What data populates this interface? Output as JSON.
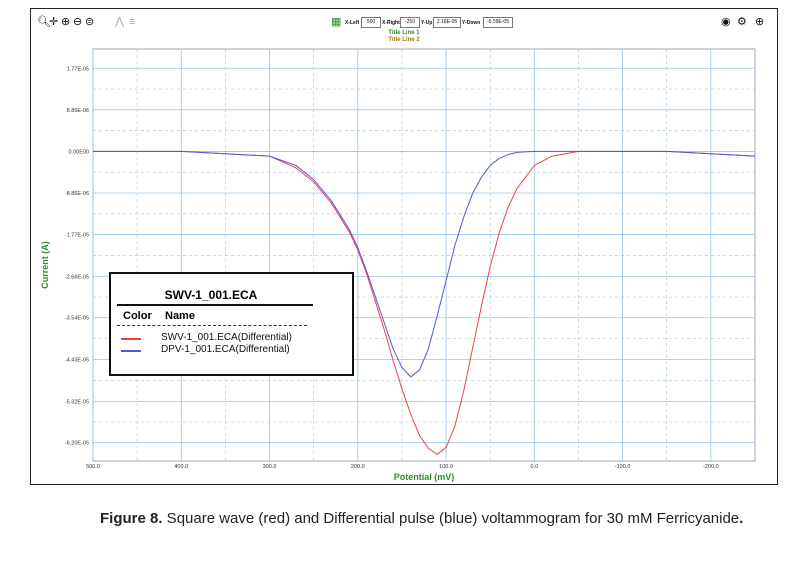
{
  "toolbar": {
    "icons_left": [
      "zoom-icon",
      "move-icon",
      "zoom-in-icon",
      "zoom-out-icon",
      "zoom-reset-icon",
      "peak-icon",
      "list-icon"
    ],
    "icons_right": [
      "camera-icon",
      "settings-icon",
      "zoom-icon"
    ],
    "x_left_label": "X-Left",
    "x_left_value": "500",
    "x_right_label": "X-Right",
    "x_right_value": "-250",
    "y_up_label": "Y-Up",
    "y_up_value": "2.18E-05",
    "y_down_label": "Y-Down",
    "y_down_value": "-6.59E-05"
  },
  "colors": {
    "grid": "#9cc3e6",
    "axis_label": "#2e8b2e",
    "red_series": "#ee4040",
    "blue_series": "#5555dd",
    "title_line_1": "#2e8b2e",
    "title_line_2": "#a07a10"
  },
  "chart_data": {
    "type": "line",
    "title_line_1": "Title Line 1",
    "title_line_2": "Title Line 2",
    "xlabel": "Potential (mV)",
    "ylabel": "Current (A)",
    "x_reversed": true,
    "xlim": [
      500,
      -250
    ],
    "ylim": [
      -6.59e-05,
      2.18e-05
    ],
    "grid": true,
    "x_ticks": [
      500,
      400,
      300,
      200,
      100,
      0,
      -100,
      -200
    ],
    "x_tick_labels": [
      "500.0",
      "400.0",
      "300.0",
      "200.0",
      "100.0",
      "0.0",
      "-100.0",
      "-200.0"
    ],
    "y_ticks": [
      1.77e-05,
      8.86e-06,
      0,
      -8.86e-06,
      -1.77e-05,
      -2.66e-05,
      -3.54e-05,
      -4.43e-05,
      -5.32e-05,
      -6.2e-05
    ],
    "y_tick_labels": [
      "1.77E-05",
      "8.86E-06",
      "0.00E00",
      "-8.86E-06",
      "-1.77E-05",
      "-2.66E-05",
      "-3.54E-05",
      "-4.43E-05",
      "-5.32E-05",
      "-6.20E-05"
    ],
    "legend_title": "SWV-1_001.ECA",
    "legend_headers": [
      "Color",
      "Name"
    ],
    "series": [
      {
        "name": "SWV-1_001.ECA(Differential)",
        "color": "#ee4040",
        "x": [
          500,
          400,
          300,
          270,
          250,
          230,
          210,
          200,
          190,
          180,
          170,
          160,
          150,
          140,
          130,
          120,
          110,
          100,
          90,
          80,
          70,
          60,
          50,
          40,
          30,
          20,
          0,
          -20,
          -50,
          -100,
          -150,
          -200,
          -250
        ],
        "y": [
          0,
          0,
          -1e-06,
          -3.5e-06,
          -6.5e-06,
          -1.1e-05,
          -1.7e-05,
          -2.1e-05,
          -2.6e-05,
          -3.2e-05,
          -3.8e-05,
          -4.45e-05,
          -5.05e-05,
          -5.6e-05,
          -6.05e-05,
          -6.32e-05,
          -6.45e-05,
          -6.3e-05,
          -5.85e-05,
          -5.1e-05,
          -4.2e-05,
          -3.3e-05,
          -2.45e-05,
          -1.75e-05,
          -1.2e-05,
          -8e-06,
          -3e-06,
          -1e-06,
          0,
          0,
          0,
          -5e-07,
          -1e-06
        ]
      },
      {
        "name": "DPV-1_001.ECA(Differential)",
        "color": "#5555dd",
        "x": [
          500,
          400,
          300,
          270,
          250,
          230,
          210,
          200,
          190,
          180,
          170,
          160,
          150,
          140,
          130,
          120,
          110,
          100,
          90,
          80,
          70,
          60,
          50,
          40,
          30,
          20,
          0,
          -20,
          -50,
          -100,
          -150,
          -200,
          -250
        ],
        "y": [
          0,
          0,
          -1e-06,
          -3e-06,
          -6e-06,
          -1.05e-05,
          -1.65e-05,
          -2.05e-05,
          -2.55e-05,
          -3.1e-05,
          -3.65e-05,
          -4.2e-05,
          -4.6e-05,
          -4.8e-05,
          -4.65e-05,
          -4.2e-05,
          -3.5e-05,
          -2.75e-05,
          -2e-05,
          -1.4e-05,
          -9e-06,
          -5.5e-06,
          -3e-06,
          -1.5e-06,
          -7e-07,
          -2e-07,
          0,
          0,
          0,
          0,
          0,
          -5e-07,
          -1e-06
        ]
      }
    ]
  },
  "caption": {
    "label": "Figure 8.",
    "text": " Square wave (red) and Differential pulse (blue) voltammogram for 30 mM Ferricyanide",
    "end": "."
  }
}
